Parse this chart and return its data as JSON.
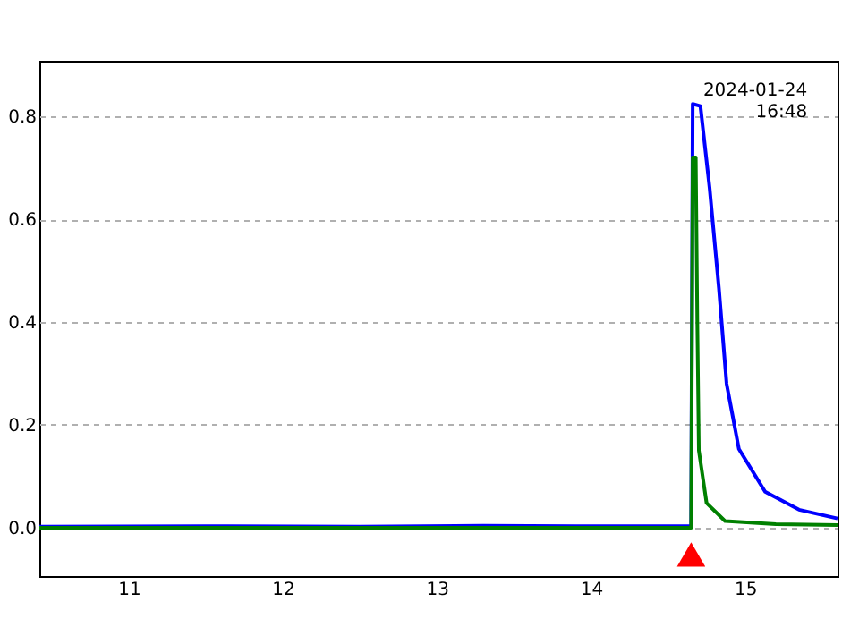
{
  "chart_data": {
    "type": "line",
    "xlim": [
      10.42,
      15.6
    ],
    "ylim": [
      -0.094,
      0.908
    ],
    "xticks": [
      11,
      12,
      13,
      14,
      15
    ],
    "yticks": [
      {
        "value": 0,
        "label": "0.0"
      },
      {
        "value": 0.2,
        "label": "0.2"
      },
      {
        "value": 0.4,
        "label": "0.4"
      },
      {
        "value": 0.6,
        "label": "0.6"
      },
      {
        "value": 0.8,
        "label": "0.8"
      }
    ],
    "grid": "y",
    "line_style": "solid",
    "marker": "none",
    "series": [
      {
        "color": "#0000ff",
        "x": [
          10.42,
          11.5,
          12.5,
          13.3,
          13.9,
          14.65,
          14.66,
          14.71,
          14.77,
          14.83,
          14.88,
          14.96,
          15.13,
          15.35,
          15.6
        ],
        "values": [
          0.002,
          0.003,
          0.002,
          0.004,
          0.003,
          0.003,
          0.824,
          0.82,
          0.66,
          0.466,
          0.28,
          0.153,
          0.07,
          0.035,
          0.018
        ]
      },
      {
        "color": "#008000",
        "x": [
          10.42,
          12,
          13,
          14,
          14.65,
          14.66,
          14.68,
          14.69,
          14.7,
          14.75,
          14.87,
          15.2,
          15.6
        ],
        "values": [
          0.0,
          0.0,
          0.0,
          0.0,
          0.0,
          0.72,
          0.72,
          0.4,
          0.15,
          0.048,
          0.013,
          0.007,
          0.005
        ]
      },
      {
        "type": "scatter",
        "marker": "triangle",
        "color": "#ff0000",
        "x": [
          14.65
        ],
        "values": [
          -0.052
        ]
      }
    ],
    "annotations": [
      {
        "text": "2024-01-24\n16:48",
        "x": 14.66,
        "y": 0.82
      }
    ]
  }
}
